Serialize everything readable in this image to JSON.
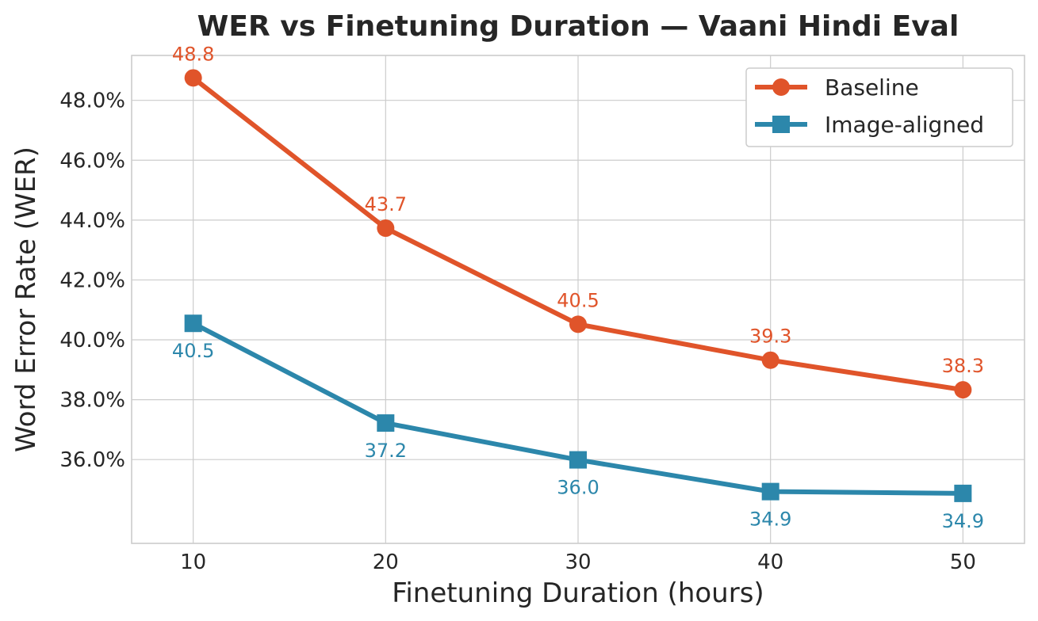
{
  "chart_data": {
    "type": "line",
    "title": "WER vs Finetuning Duration — Vaani Hindi Eval",
    "xlabel": "Finetuning Duration (hours)",
    "ylabel": "Word Error Rate (WER)",
    "x": [
      10,
      20,
      30,
      40,
      50
    ],
    "xlim": [
      6.8,
      53.2
    ],
    "ylim": [
      33.2,
      49.5
    ],
    "xticks": [
      10,
      20,
      30,
      40,
      50
    ],
    "yticks": [
      36,
      38,
      40,
      42,
      44,
      46,
      48
    ],
    "ytick_labels": [
      "36.0%",
      "38.0%",
      "40.0%",
      "42.0%",
      "44.0%",
      "46.0%",
      "48.0%"
    ],
    "grid": true,
    "legend_position": "top-right",
    "series": [
      {
        "name": "Baseline",
        "values": [
          48.75,
          43.73,
          40.52,
          39.32,
          38.33
        ],
        "labels": [
          "48.8",
          "43.7",
          "40.5",
          "39.3",
          "38.3"
        ],
        "marker": "circle",
        "color": "#e0542a",
        "label_position": "above"
      },
      {
        "name": "Image-aligned",
        "values": [
          40.55,
          37.22,
          35.99,
          34.93,
          34.87
        ],
        "labels": [
          "40.5",
          "37.2",
          "36.0",
          "34.9",
          "34.9"
        ],
        "marker": "square",
        "color": "#2c87ab",
        "label_position": "below"
      }
    ]
  }
}
